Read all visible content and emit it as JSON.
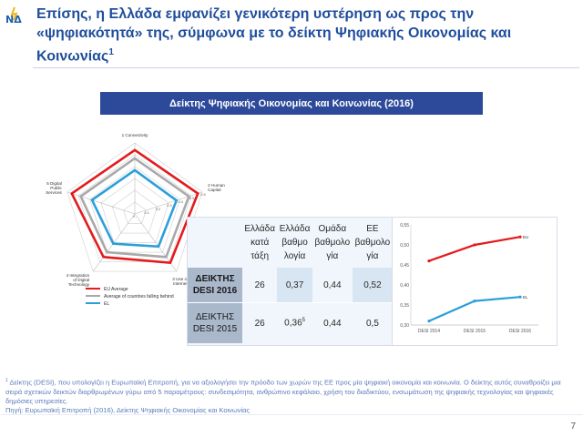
{
  "logo": {
    "text": "ΝΔ",
    "color": "#1f5fae",
    "accent": "#f2b51b"
  },
  "header": {
    "title": "Επίσης, η Ελλάδα εμφανίζει γενικότερη υστέρηση ως προς την «ψηφιακότητά» της, σύμφωνα με το δείκτη Ψηφιακής Οικονομίας και Κοινωνίας",
    "title_sup": "1"
  },
  "banner": {
    "text": "Δείκτης Ψηφιακής Οικονομίας και Κοινωνίας (2016)",
    "color": "#2d4a9a"
  },
  "radar": {
    "axes": [
      "1 Connectivity",
      "2 Human Capital",
      "3 Use of Internet",
      "4 Integration of Digital Technology",
      "5 Digital Public Services"
    ],
    "axis_label_lines": [
      [
        "1 Connectivity"
      ],
      [
        "2 Human",
        "Capital"
      ],
      [
        "3 Use of",
        "Internet"
      ],
      [
        "4 Integration",
        "of Digital",
        "Technology"
      ],
      [
        "5 Digital",
        "Public",
        "Services"
      ]
    ],
    "scale_labels": [
      "0",
      "0.1",
      "0.2",
      "0.3",
      "0.4",
      "0.5",
      "0.6"
    ],
    "legend": [
      "EU Average",
      "Average of countries falling behind",
      "EL"
    ]
  },
  "table": {
    "headers": [
      "Ελλάδα κατά τάξη",
      "Ελλάδα βαθμο λογία",
      "Ομάδα βαθμολο γία",
      "ΕΕ βαθμολο γία"
    ],
    "header_lines": [
      [
        "Ελλάδα",
        "κατά",
        "τάξη"
      ],
      [
        "Ελλάδα",
        "βαθμο",
        "λογία"
      ],
      [
        "Ομάδα",
        "βαθμολο",
        "γία"
      ],
      [
        "ΕΕ",
        "βαθμολο",
        "γία"
      ]
    ],
    "rows": [
      {
        "label_lines": [
          "ΔΕΙΚΤΗΣ",
          "DESI 2016"
        ],
        "values": [
          "26",
          "0,37",
          "0,44",
          "0,52"
        ],
        "sup": ""
      },
      {
        "label_lines": [
          "ΔΕΙΚΤΗΣ",
          "DESI 2015"
        ],
        "values": [
          "26",
          "0,36",
          "0,44",
          "0,5"
        ],
        "sup": "5"
      }
    ]
  },
  "chart_data": [
    {
      "type": "radar",
      "title": "",
      "categories": [
        "1 Connectivity",
        "2 Human Capital",
        "3 Use of Internet",
        "4 Integration of Digital Technology",
        "5 Digital Public Services"
      ],
      "ylim": [
        0,
        0.6
      ],
      "series": [
        {
          "name": "EU Average",
          "color": "#e41a1c",
          "values": [
            0.54,
            0.56,
            0.51,
            0.45,
            0.56
          ]
        },
        {
          "name": "Average of countries falling behind",
          "color": "#a9a9a9",
          "values": [
            0.47,
            0.48,
            0.45,
            0.4,
            0.48
          ]
        },
        {
          "name": "EL",
          "color": "#2c9fd9",
          "values": [
            0.37,
            0.37,
            0.34,
            0.31,
            0.38
          ]
        }
      ],
      "legend_position": "bottom-left"
    },
    {
      "type": "line",
      "title": "",
      "categories": [
        "DESI 2014",
        "DESI 2015",
        "DESI 2016"
      ],
      "ylim": [
        0.3,
        0.55
      ],
      "yticks": [
        "0,30",
        "0,35",
        "0,40",
        "0,45",
        "0,50",
        "0,55"
      ],
      "series": [
        {
          "name": "EU",
          "color": "#e41a1c",
          "values": [
            0.46,
            0.5,
            0.52
          ]
        },
        {
          "name": "EL",
          "color": "#2c9fd9",
          "values": [
            0.31,
            0.36,
            0.37
          ]
        }
      ]
    }
  ],
  "footnote": {
    "sup": "1",
    "line1": "Δείκτης (DESI), που υπολογίζει η Ευρωπαϊκή Επιτροπή, για να αξιολογήσει την πρόοδο των χωρών της ΕΕ προς μία ψηφιακή οικονομία και κοινωνία. Ο δείκτης αυτός συναθροίζει μια σειρά σχετικών δεικτών διαρθρωμένων γύρω από 5 παραμέτρους: συνδεσιμότητα, ανθρώπινο κεφάλαιο, χρήση του διαδικτύου, ενσωμάτωση της ψηφιακής τεχνολογίας και ψηφιακές δημόσιες υπηρεσίες.",
    "line2": "Πηγή: Ευρωπαϊκή Επιτροπή (2016), Δείκτης Ψηφιακής Οικονομίας και Κοινωνίας"
  },
  "page_number": "7"
}
